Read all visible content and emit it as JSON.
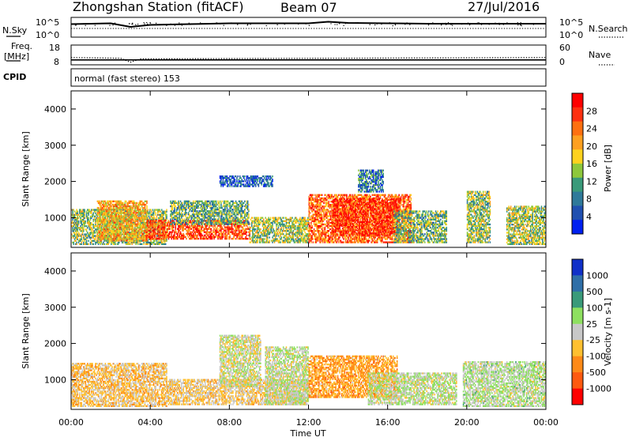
{
  "header": {
    "station": "Zhongshan Station (fitACF)",
    "beam": "Beam 07",
    "date": "27/Jul/2016"
  },
  "top_panels": {
    "nsky_label": "N.Sky",
    "nsky_ticks": [
      "10^5",
      "10^0"
    ],
    "nsearch_label": "N.Search",
    "nsearch_ticks": [
      "10^5",
      "10^0"
    ],
    "freq_label": "Freq.",
    "freq_unit": "[MHz]",
    "freq_ticks": [
      "18",
      "8"
    ],
    "nave_label": "Nave",
    "nave_ticks": [
      "60",
      "0"
    ],
    "cpid_label": "CPID",
    "cpid_text": "normal (fast stereo) 153"
  },
  "axes": {
    "ylabel": "Slant Range [km]",
    "yticks": [
      "4000",
      "3000",
      "2000",
      "1000"
    ],
    "xlabel": "Time UT",
    "xticks": [
      "00:00",
      "04:00",
      "08:00",
      "12:00",
      "16:00",
      "20:00",
      "00:00"
    ]
  },
  "colorbars": {
    "power": {
      "label": "Power [dB]",
      "ticks": [
        "28",
        "24",
        "20",
        "16",
        "12",
        "8",
        "4"
      ],
      "colors": [
        "#0020f0",
        "#2050b0",
        "#2f7a9a",
        "#3a9a7a",
        "#8ec83c",
        "#ffd21e",
        "#ffa020",
        "#ff7010",
        "#ff3010",
        "#ff0000"
      ]
    },
    "velocity": {
      "label": "Velocity [m s-1]",
      "ticks": [
        "1000",
        "500",
        "100",
        "25",
        "-25",
        "-100",
        "-500",
        "-1000"
      ],
      "colors": [
        "#ff0000",
        "#ff5a10",
        "#ff8a18",
        "#ffc030",
        "#c8c8c8",
        "#8ee060",
        "#3a9a7a",
        "#2f6fa8",
        "#1030c8"
      ]
    }
  },
  "chart_data": [
    {
      "type": "line",
      "title": "Zhongshan Station (fitACF) Beam 07 27/Jul/2016",
      "panel": "N.Sky / N.Search",
      "xlim_hours": [
        0,
        24
      ],
      "ylim_log10": [
        0,
        5
      ],
      "series": [
        {
          "name": "N.Sky",
          "x": [
            0,
            2,
            3,
            4,
            6,
            8,
            10,
            12,
            13,
            14,
            16,
            18,
            20,
            22,
            24
          ],
          "y": [
            3.3,
            3.5,
            2.6,
            3.1,
            3.3,
            3.5,
            3.5,
            3.5,
            3.9,
            3.6,
            3.5,
            3.4,
            3.4,
            3.4,
            3.4
          ]
        },
        {
          "name": "N.Search",
          "x": [
            0,
            24
          ],
          "y": [
            2.2,
            2.2
          ]
        }
      ]
    },
    {
      "type": "line",
      "panel": "Freq. / Nave",
      "xlim_hours": [
        0,
        24
      ],
      "ylim_freq_mhz": [
        8,
        18
      ],
      "ylim_nave": [
        0,
        60
      ],
      "series": [
        {
          "name": "Freq.",
          "x": [
            0,
            24
          ],
          "y": [
            10.5,
            10.5
          ]
        },
        {
          "name": "Nave",
          "x": [
            0,
            2.5,
            3,
            3.5,
            24
          ],
          "y": [
            22,
            20,
            8,
            18,
            22
          ]
        }
      ]
    },
    {
      "type": "heatmap",
      "panel": "Power",
      "xlabel": "Time UT",
      "ylabel": "Slant Range [km]",
      "xlim_hours": [
        0,
        24
      ],
      "ylim": [
        180,
        4500
      ],
      "zlabel": "Power [dB]",
      "zlim": [
        0,
        32
      ],
      "regions": [
        {
          "t0": 0.0,
          "t1": 4.8,
          "r0": 250,
          "r1": 1200,
          "value": 14
        },
        {
          "t0": 1.3,
          "t1": 3.8,
          "r0": 350,
          "r1": 1450,
          "value": 20
        },
        {
          "t0": 3.8,
          "t1": 9.0,
          "r0": 400,
          "r1": 900,
          "value": 26
        },
        {
          "t0": 5.0,
          "t1": 9.0,
          "r0": 800,
          "r1": 1450,
          "value": 12
        },
        {
          "t0": 7.5,
          "t1": 10.2,
          "r0": 1850,
          "r1": 2150,
          "value": 6
        },
        {
          "t0": 9.0,
          "t1": 12.0,
          "r0": 300,
          "r1": 1000,
          "value": 15
        },
        {
          "t0": 12.0,
          "t1": 17.2,
          "r0": 300,
          "r1": 1650,
          "value": 24
        },
        {
          "t0": 13.2,
          "t1": 16.6,
          "r0": 500,
          "r1": 1500,
          "value": 28
        },
        {
          "t0": 14.5,
          "t1": 15.8,
          "r0": 1700,
          "r1": 2300,
          "value": 8
        },
        {
          "t0": 16.3,
          "t1": 19.0,
          "r0": 300,
          "r1": 1200,
          "value": 13
        },
        {
          "t0": 20.0,
          "t1": 21.2,
          "r0": 300,
          "r1": 1700,
          "value": 14
        },
        {
          "t0": 22.0,
          "t1": 24.0,
          "r0": 250,
          "r1": 1300,
          "value": 15
        }
      ]
    },
    {
      "type": "heatmap",
      "panel": "Velocity",
      "xlabel": "Time UT",
      "ylabel": "Slant Range [km]",
      "xlim_hours": [
        0,
        24
      ],
      "ylim": [
        180,
        4500
      ],
      "zlabel": "Velocity [m s-1]",
      "zlim": [
        -1000,
        1000
      ],
      "regions": [
        {
          "t0": 0.0,
          "t1": 4.8,
          "r0": 250,
          "r1": 1450,
          "value": -200
        },
        {
          "t0": 4.8,
          "t1": 12.0,
          "r0": 300,
          "r1": 1000,
          "value": -150
        },
        {
          "t0": 7.5,
          "t1": 9.6,
          "r0": 800,
          "r1": 2200,
          "value": 0
        },
        {
          "t0": 9.8,
          "t1": 12.0,
          "r0": 300,
          "r1": 1900,
          "value": 50
        },
        {
          "t0": 12.0,
          "t1": 16.5,
          "r0": 500,
          "r1": 1650,
          "value": -350
        },
        {
          "t0": 15.0,
          "t1": 19.5,
          "r0": 300,
          "r1": 1200,
          "value": 60
        },
        {
          "t0": 19.8,
          "t1": 24.0,
          "r0": 250,
          "r1": 1500,
          "value": 100
        }
      ]
    }
  ]
}
